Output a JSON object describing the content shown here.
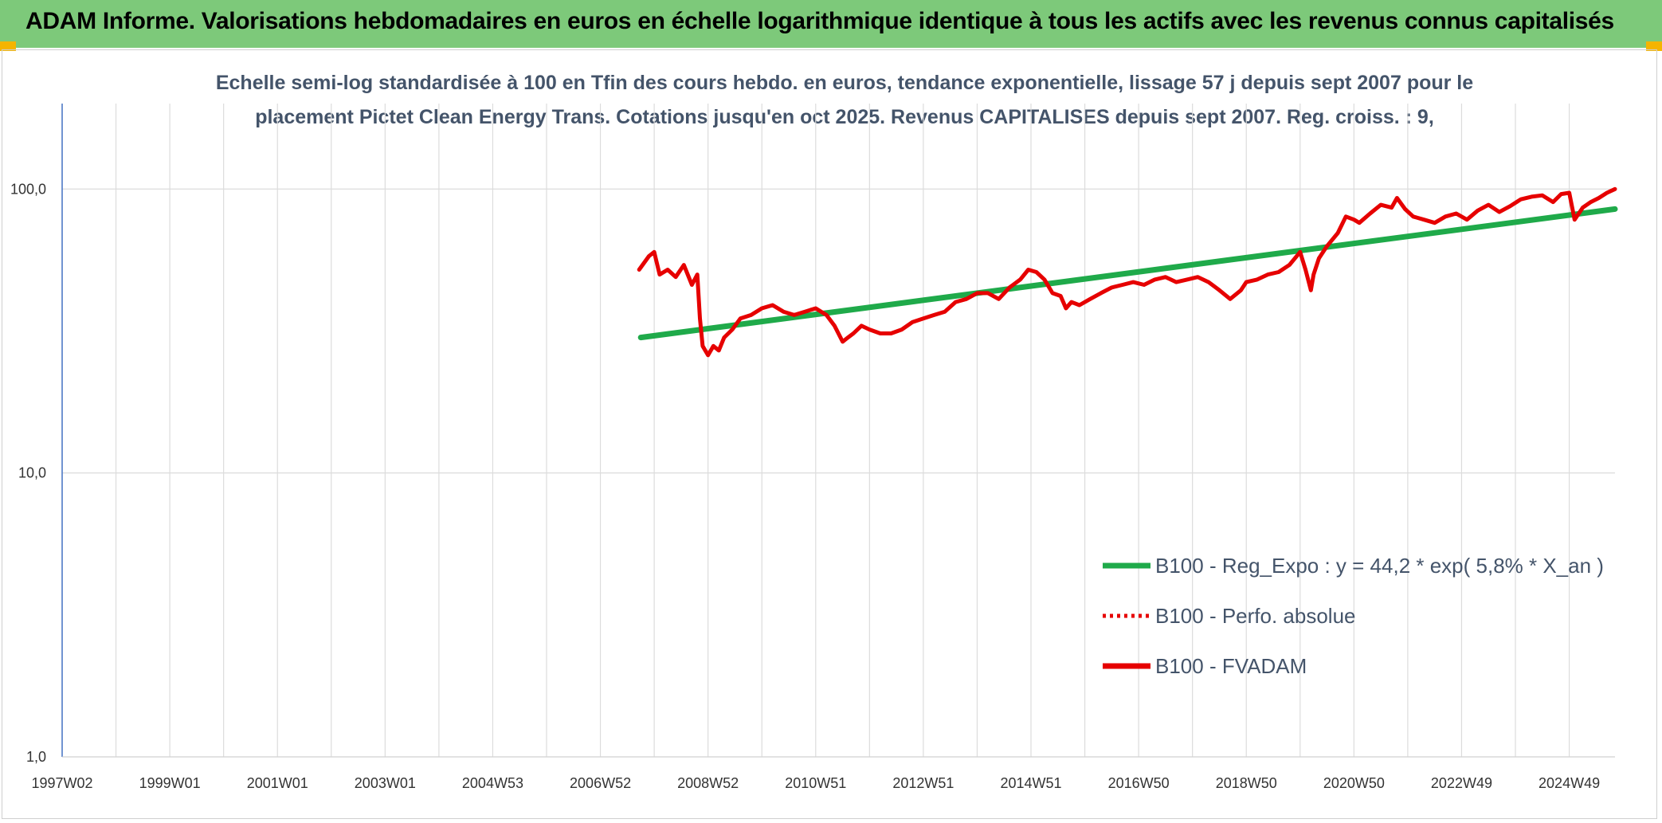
{
  "banner": {
    "title": "ADAM Informe. Valorisations hebdomadaires en euros en échelle logarithmique identique à tous les actifs avec les revenus connus capitalisés"
  },
  "chart_data": {
    "type": "line",
    "title_line1": "Echelle semi-log standardisée à 100 en Tfin des cours hebdo. en euros, tendance exponentielle, lissage 57 j depuis sept 2007 pour le",
    "title_line2": "placement Pictet Clean Energy Trans.  Cotations jusqu'en oct 2025. Revenus CAPITALISES depuis sept 2007. Reg. croiss. : 9,",
    "y_scale": "log",
    "ylim": [
      1,
      200
    ],
    "y_ticks": [
      {
        "value": 100,
        "label": "100,0"
      },
      {
        "value": 10,
        "label": "10,0"
      },
      {
        "value": 1,
        "label": "1,0"
      }
    ],
    "xlim": [
      1997.0,
      2025.85
    ],
    "x_ticks": [
      {
        "value": 1997.0,
        "label": "1997W02"
      },
      {
        "value": 1999.0,
        "label": "1999W01"
      },
      {
        "value": 2001.0,
        "label": "2001W01"
      },
      {
        "value": 2003.0,
        "label": "2003W01"
      },
      {
        "value": 2005.0,
        "label": "2004W53"
      },
      {
        "value": 2007.0,
        "label": "2006W52"
      },
      {
        "value": 2009.0,
        "label": "2008W52"
      },
      {
        "value": 2011.0,
        "label": "2010W51"
      },
      {
        "value": 2013.0,
        "label": "2012W51"
      },
      {
        "value": 2015.0,
        "label": "2014W51"
      },
      {
        "value": 2017.0,
        "label": "2016W50"
      },
      {
        "value": 2019.0,
        "label": "2018W50"
      },
      {
        "value": 2021.0,
        "label": "2020W50"
      },
      {
        "value": 2023.0,
        "label": "2022W49"
      },
      {
        "value": 2025.0,
        "label": "2024W49"
      }
    ],
    "x_gridlines": [
      1997.0,
      1998.0,
      1999.0,
      2000.0,
      2001.0,
      2002.0,
      2003.0,
      2004.0,
      2005.0,
      2006.0,
      2007.0,
      2008.0,
      2009.0,
      2010.0,
      2011.0,
      2012.0,
      2013.0,
      2014.0,
      2015.0,
      2016.0,
      2017.0,
      2018.0,
      2019.0,
      2020.0,
      2021.0,
      2022.0,
      2023.0,
      2024.0,
      2025.0
    ],
    "grid": true,
    "legend_position": "bottom-right",
    "series": [
      {
        "name": "B100 - Reg_Expo : y = 44,2 * exp( 5,8% *  X_an )",
        "color": "#1faa4a",
        "style": "solid",
        "x": [
          2007.75,
          2025.85
        ],
        "y": [
          30.0,
          85.0
        ]
      },
      {
        "name": "B100 - Perfo. absolue",
        "color": "#e60000",
        "style": "dotted",
        "x": [],
        "y": []
      },
      {
        "name": "B100 - FVADAM",
        "color": "#e60000",
        "style": "solid",
        "x": [
          2007.72,
          2007.9,
          2008.0,
          2008.1,
          2008.25,
          2008.4,
          2008.55,
          2008.7,
          2008.8,
          2008.85,
          2008.9,
          2009.0,
          2009.1,
          2009.2,
          2009.3,
          2009.45,
          2009.6,
          2009.8,
          2010.0,
          2010.2,
          2010.4,
          2010.6,
          2010.8,
          2011.0,
          2011.2,
          2011.35,
          2011.5,
          2011.6,
          2011.7,
          2011.85,
          2012.0,
          2012.2,
          2012.4,
          2012.6,
          2012.8,
          2013.0,
          2013.2,
          2013.4,
          2013.6,
          2013.8,
          2014.0,
          2014.2,
          2014.4,
          2014.6,
          2014.8,
          2014.95,
          2015.1,
          2015.25,
          2015.4,
          2015.55,
          2015.65,
          2015.75,
          2015.9,
          2016.1,
          2016.3,
          2016.5,
          2016.7,
          2016.9,
          2017.1,
          2017.3,
          2017.5,
          2017.7,
          2017.9,
          2018.1,
          2018.3,
          2018.5,
          2018.7,
          2018.9,
          2019.0,
          2019.2,
          2019.4,
          2019.6,
          2019.8,
          2020.0,
          2020.1,
          2020.2,
          2020.25,
          2020.35,
          2020.5,
          2020.7,
          2020.85,
          2021.0,
          2021.1,
          2021.3,
          2021.5,
          2021.7,
          2021.8,
          2021.95,
          2022.1,
          2022.3,
          2022.5,
          2022.7,
          2022.9,
          2023.1,
          2023.3,
          2023.5,
          2023.7,
          2023.9,
          2024.1,
          2024.3,
          2024.5,
          2024.7,
          2024.85,
          2025.0,
          2025.1,
          2025.25,
          2025.4,
          2025.55,
          2025.7,
          2025.85
        ],
        "y": [
          52,
          58,
          60,
          50,
          52,
          49,
          54,
          46,
          50,
          35,
          28,
          26,
          28,
          27,
          30,
          32,
          35,
          36,
          38,
          39,
          37,
          36,
          37,
          38,
          36,
          33,
          29,
          30,
          31,
          33,
          32,
          31,
          31,
          32,
          34,
          35,
          36,
          37,
          40,
          41,
          43,
          43,
          41,
          45,
          48,
          52,
          51,
          48,
          43,
          42,
          38,
          40,
          39,
          41,
          43,
          45,
          46,
          47,
          46,
          48,
          49,
          47,
          48,
          49,
          47,
          44,
          41,
          44,
          47,
          48,
          50,
          51,
          54,
          60,
          52,
          44,
          50,
          57,
          63,
          70,
          80,
          78,
          76,
          82,
          88,
          86,
          93,
          85,
          80,
          78,
          76,
          80,
          82,
          78,
          84,
          88,
          83,
          87,
          92,
          94,
          95,
          90,
          96,
          97,
          78,
          86,
          90,
          93,
          97,
          100
        ]
      }
    ]
  }
}
